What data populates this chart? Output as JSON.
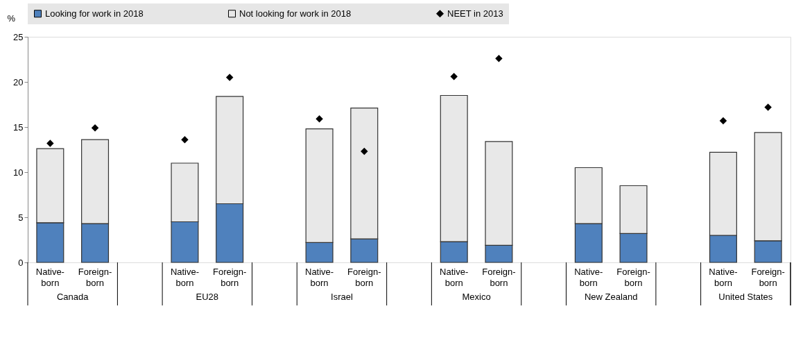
{
  "chart_data": {
    "type": "bar",
    "stacked": true,
    "ylabel": "%",
    "categories": [
      "Native-born",
      "Foreign-born",
      "Native-born",
      "Foreign-born",
      "Native-born",
      "Foreign-born",
      "Native-born",
      "Foreign-born",
      "Native-born",
      "Foreign-born",
      "Native-born",
      "Foreign-born"
    ],
    "annotations": [
      "Canada",
      "EU28",
      "Israel",
      "Mexico",
      "New Zealand",
      "United States"
    ],
    "series": [
      {
        "name": "Looking for work in 2018",
        "color": "#4f81bd",
        "values": [
          4.4,
          4.3,
          4.5,
          6.5,
          2.2,
          2.6,
          2.3,
          1.9,
          4.3,
          3.2,
          3.0,
          2.4
        ]
      },
      {
        "name": "Not looking for work in 2018",
        "color": "#e8e8e8",
        "values": [
          8.2,
          9.3,
          6.5,
          11.9,
          12.6,
          14.5,
          16.2,
          11.5,
          6.2,
          5.3,
          9.2,
          12.0
        ]
      },
      {
        "name": "NEET in 2013",
        "type": "scatter",
        "marker": "diamond",
        "color": "#000000",
        "values": [
          13.2,
          14.9,
          13.6,
          20.5,
          15.9,
          12.3,
          20.6,
          22.6,
          null,
          null,
          15.7,
          17.2
        ]
      }
    ],
    "ylim": [
      0,
      25
    ],
    "yticks": [
      0,
      5,
      10,
      15,
      20,
      25
    ],
    "grid": false,
    "legend": "top"
  }
}
